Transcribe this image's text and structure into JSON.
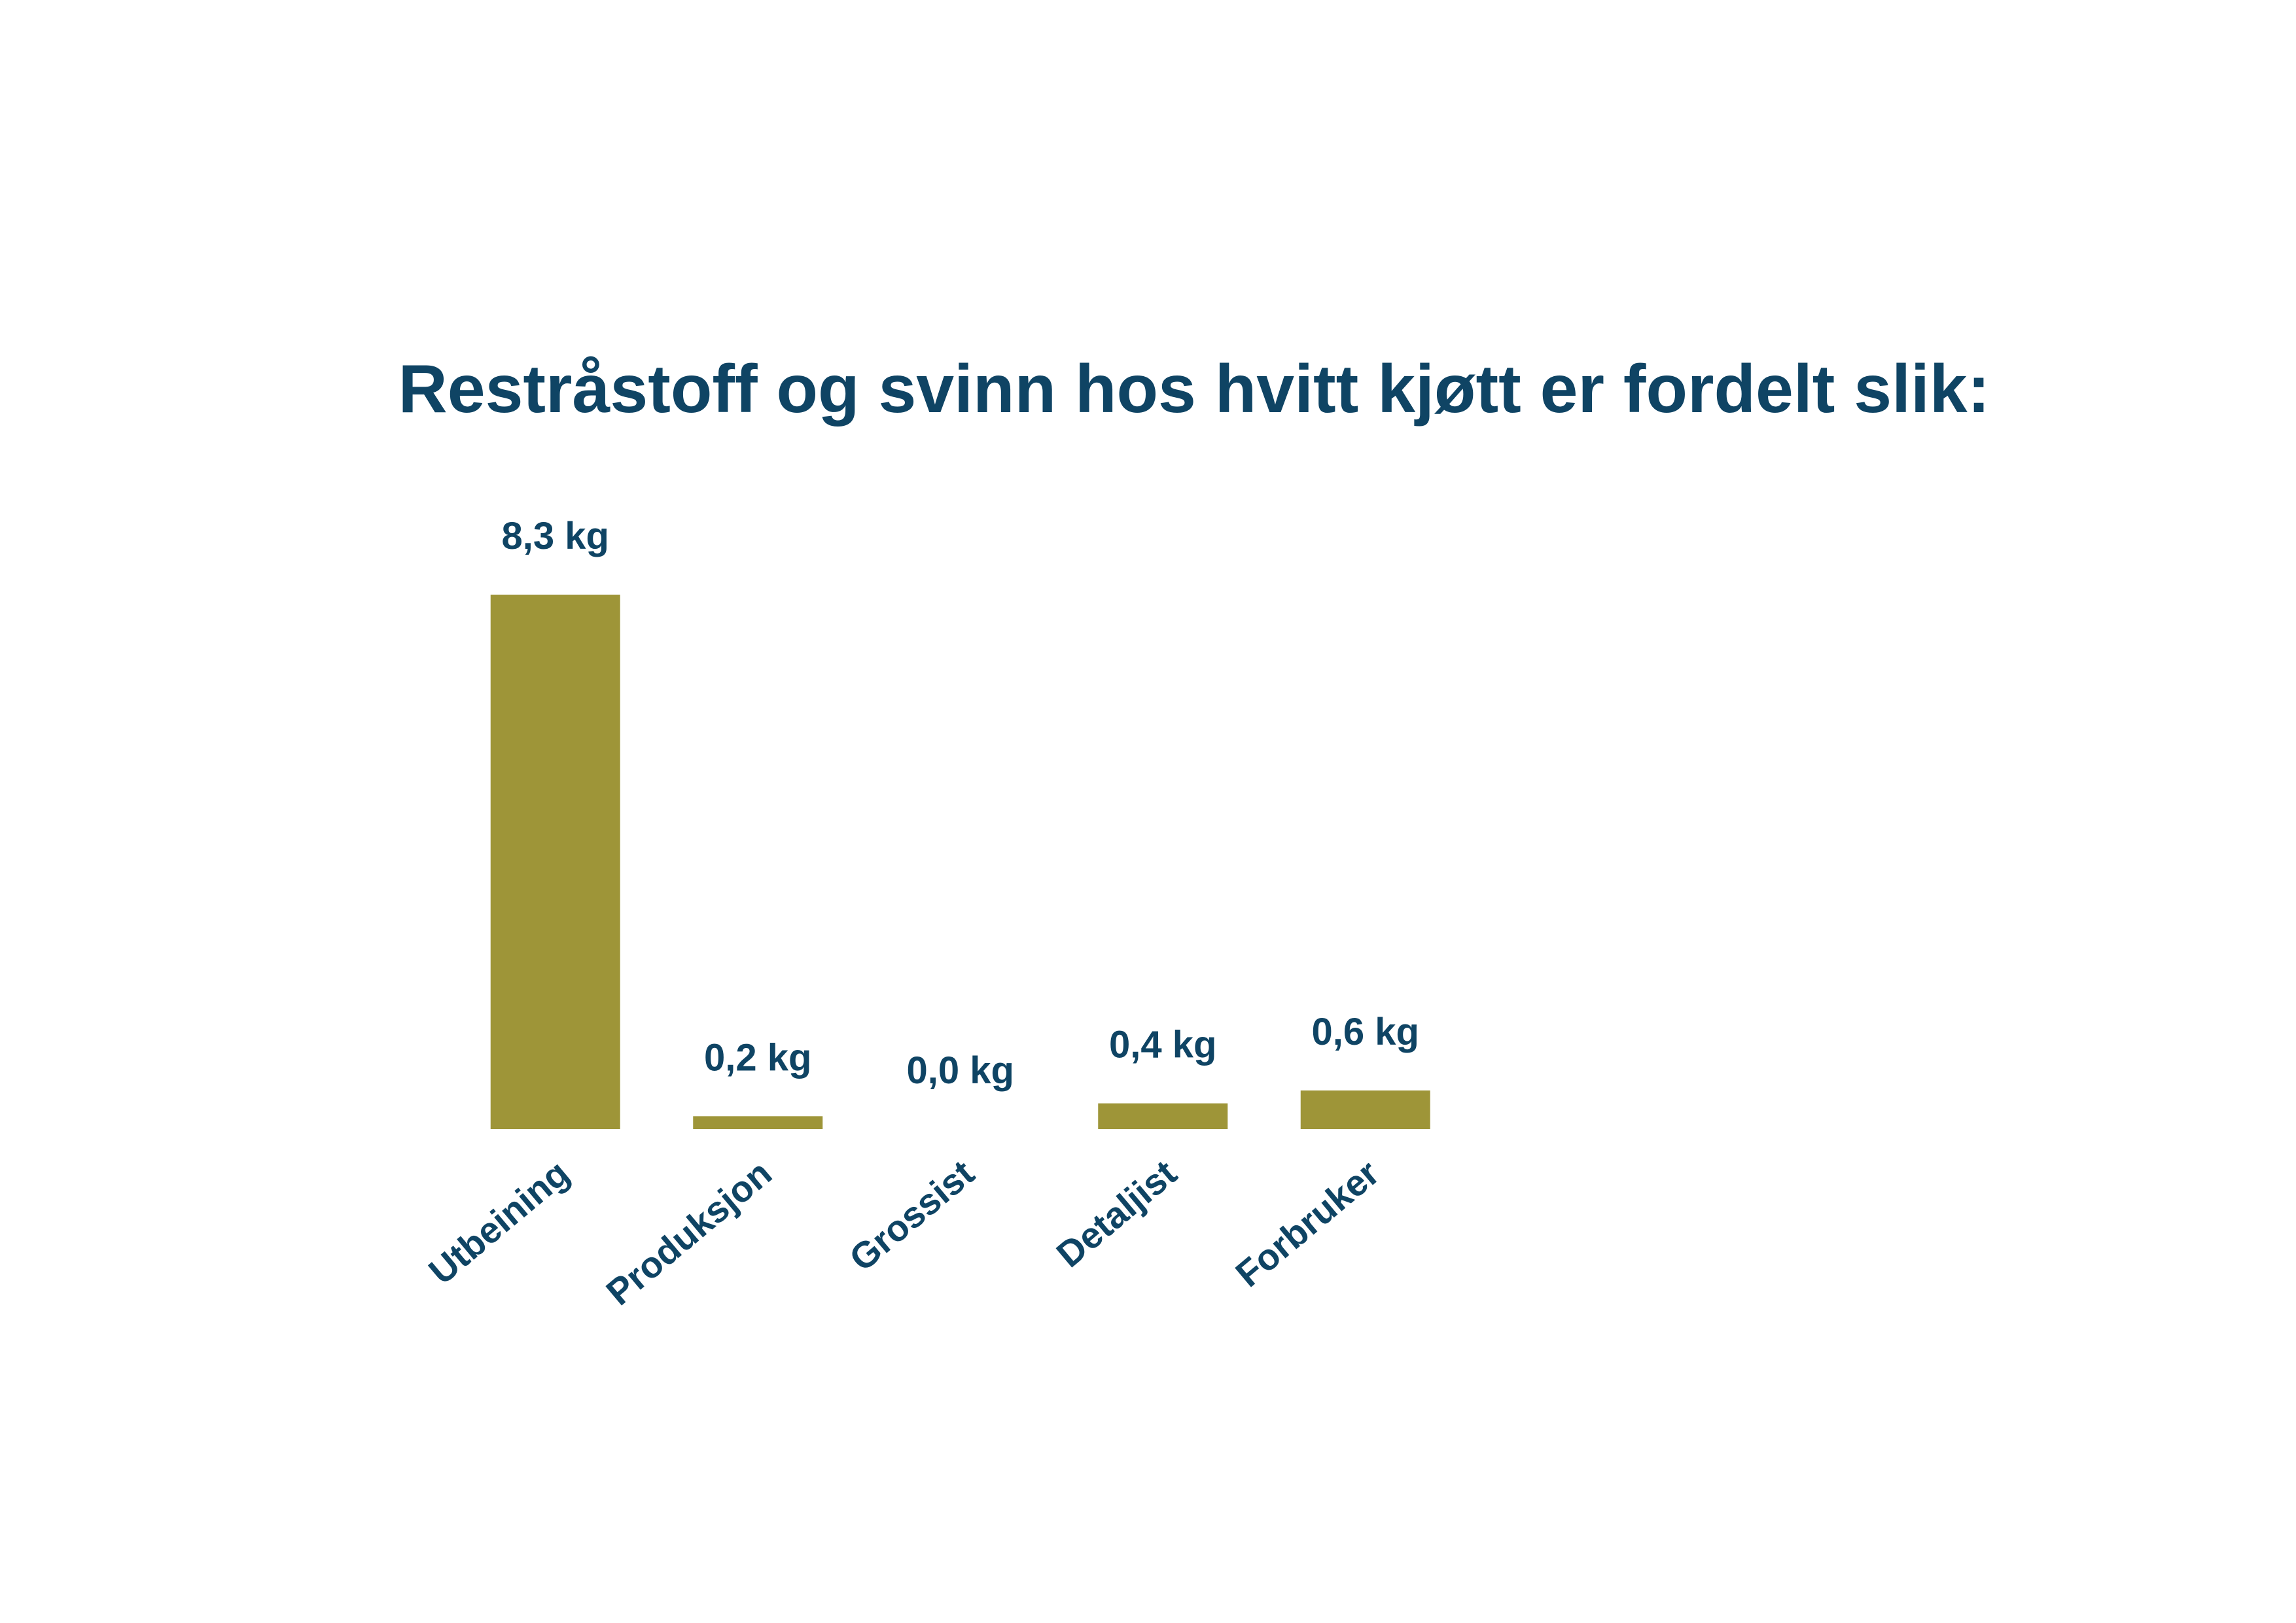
{
  "chart_data": {
    "type": "bar",
    "title": "Restråstoff og svinn hos hvitt kjøtt er fordelt slik:",
    "categories": [
      "Utbeining",
      "Produksjon",
      "Grossist",
      "Detaljist",
      "Forbruker"
    ],
    "values": [
      8.3,
      0.2,
      0.0,
      0.4,
      0.6
    ],
    "value_labels": [
      "8,3 kg",
      "0,2 kg",
      "0,0 kg",
      "0,4 kg",
      "0,6 kg"
    ],
    "color": "#9e9538"
  }
}
